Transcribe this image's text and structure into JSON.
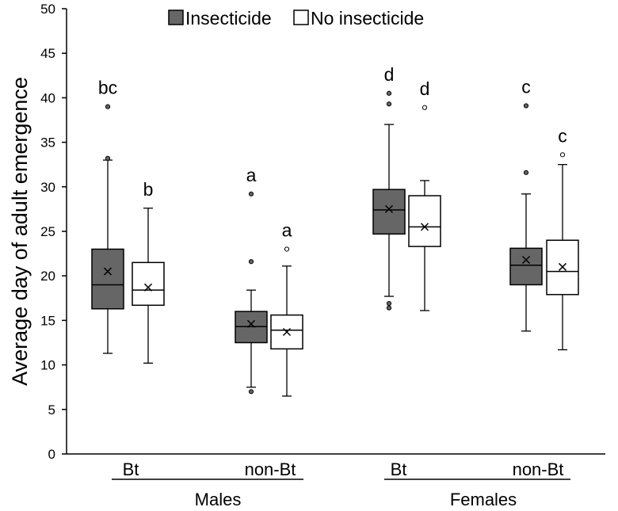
{
  "chart_data": {
    "type": "box",
    "ylabel": "Average day of adult emergence",
    "ylim": [
      0,
      50
    ],
    "yticks": [
      0,
      5,
      10,
      15,
      20,
      25,
      30,
      35,
      40,
      45,
      50
    ],
    "legend": {
      "position": "top",
      "entries": [
        {
          "name": "Insecticide",
          "color": "#666666"
        },
        {
          "name": "No insecticide",
          "color": "#ffffff"
        }
      ]
    },
    "groups": [
      {
        "label": "Males",
        "categories": [
          "Bt",
          "non-Bt"
        ]
      },
      {
        "label": "Females",
        "categories": [
          "Bt",
          "non-Bt"
        ]
      }
    ],
    "boxes": [
      {
        "group": "Males",
        "category": "Bt",
        "series": "Insecticide",
        "letter": "bc",
        "min": 11.3,
        "q1": 16.3,
        "median": 19.0,
        "q3": 23.0,
        "max": 33.0,
        "mean": 20.5,
        "outliers": [
          33.2,
          39.0
        ]
      },
      {
        "group": "Males",
        "category": "Bt",
        "series": "No insecticide",
        "letter": "b",
        "min": 10.2,
        "q1": 16.7,
        "median": 18.4,
        "q3": 21.5,
        "max": 27.6,
        "mean": 18.7,
        "outliers": []
      },
      {
        "group": "Males",
        "category": "non-Bt",
        "series": "Insecticide",
        "letter": "a",
        "min": 7.5,
        "q1": 12.5,
        "median": 14.3,
        "q3": 16.0,
        "max": 18.4,
        "mean": 14.6,
        "outliers": [
          7.0,
          21.6,
          29.2
        ]
      },
      {
        "group": "Males",
        "category": "non-Bt",
        "series": "No insecticide",
        "letter": "a",
        "min": 6.5,
        "q1": 11.8,
        "median": 13.9,
        "q3": 15.6,
        "max": 21.1,
        "mean": 13.7,
        "outliers": [
          23.0
        ]
      },
      {
        "group": "Females",
        "category": "Bt",
        "series": "Insecticide",
        "letter": "d",
        "min": 17.7,
        "q1": 24.7,
        "median": 27.4,
        "q3": 29.7,
        "max": 37.0,
        "mean": 27.5,
        "outliers": [
          16.4,
          16.9,
          39.3,
          40.5
        ]
      },
      {
        "group": "Females",
        "category": "Bt",
        "series": "No insecticide",
        "letter": "d",
        "min": 16.1,
        "q1": 23.3,
        "median": 25.5,
        "q3": 29.0,
        "max": 30.7,
        "mean": 25.5,
        "outliers": [
          38.9
        ]
      },
      {
        "group": "Females",
        "category": "non-Bt",
        "series": "Insecticide",
        "letter": "c",
        "min": 13.8,
        "q1": 19.0,
        "median": 21.2,
        "q3": 23.1,
        "max": 29.2,
        "mean": 21.8,
        "outliers": [
          31.6,
          39.1
        ]
      },
      {
        "group": "Females",
        "category": "non-Bt",
        "series": "No insecticide",
        "letter": "c",
        "min": 11.7,
        "q1": 17.9,
        "median": 20.5,
        "q3": 24.0,
        "max": 32.5,
        "mean": 21.0,
        "outliers": [
          33.6
        ]
      }
    ]
  }
}
